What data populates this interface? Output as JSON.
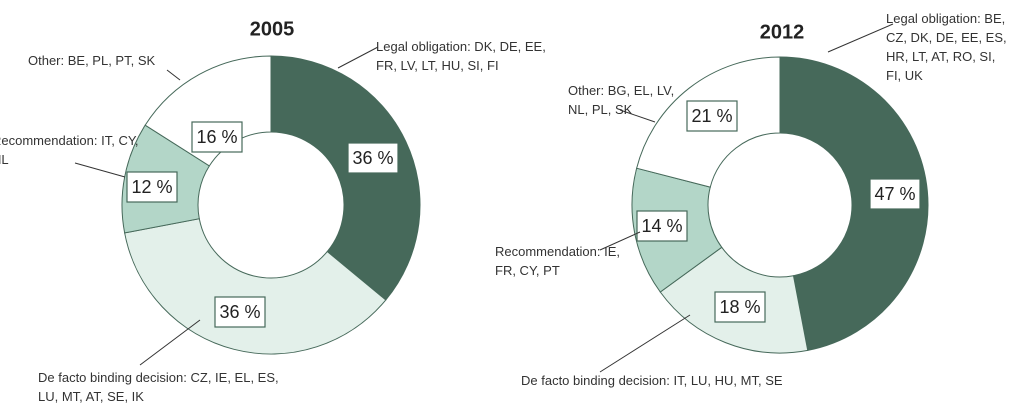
{
  "chart_data": [
    {
      "type": "donut",
      "title": "2005",
      "categories": [
        "Legal obligation: DK, DE, EE, FR, LV, LT, HU, SI, FI",
        "De facto binding decision: CZ, IE, EL, ES, LU, MT, AT, SE, IK",
        "Recommendation: IT, CY, NL",
        "Other: BE, PL, PT, SK"
      ],
      "values": [
        36,
        36,
        12,
        16
      ],
      "value_labels": [
        "36 %",
        "36 %",
        "12 %",
        "16 %"
      ],
      "colors": [
        "#46695a",
        "#e3f0ea",
        "#b3d6c8",
        "#ffffff"
      ]
    },
    {
      "type": "donut",
      "title": "2012",
      "categories": [
        "Legal obligation: BE, CZ, DK, DE, EE, ES, HR, LT, AT, RO, SI, FI, UK",
        "De facto binding decision: IT, LU, HU, MT, SE",
        "Recommendation: IE, FR, CY, PT",
        "Other: BG, EL, LV, NL, PL, SK"
      ],
      "values": [
        47,
        18,
        14,
        21
      ],
      "value_labels": [
        "47 %",
        "18 %",
        "14 %",
        "21 %"
      ],
      "colors": [
        "#46695a",
        "#e3f0ea",
        "#b3d6c8",
        "#ffffff"
      ]
    }
  ]
}
